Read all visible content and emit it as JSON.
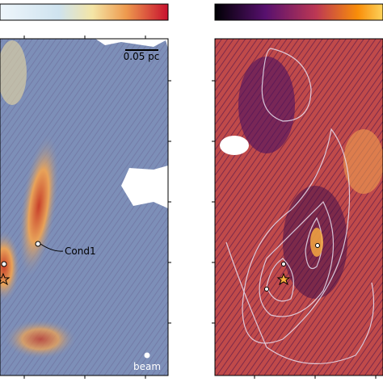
{
  "left_panel": {
    "scale_bar_label": "0.05 pc",
    "condensation_label": "Cond1",
    "beam_label": "beam"
  }
}
